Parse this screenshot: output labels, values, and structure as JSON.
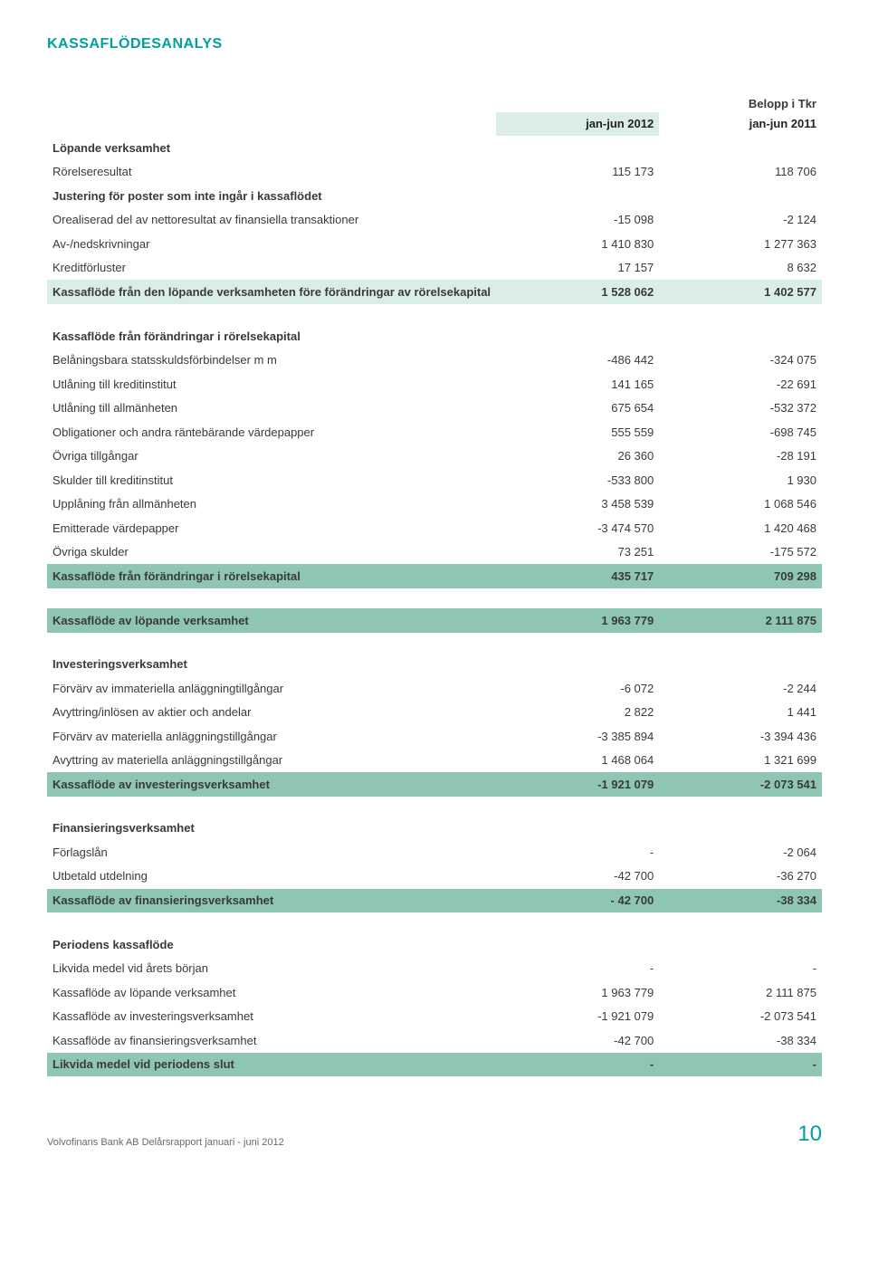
{
  "title": "KASSAFLÖDESANALYS",
  "unit_label": "Belopp i Tkr",
  "col1": "jan-jun 2012",
  "col2": "jan-jun 2011",
  "colors": {
    "accent": "#00a19a",
    "row_light": "#dbeee6",
    "row_dark": "#8ec6b3",
    "text": "#3a3a3a",
    "background": "#ffffff"
  },
  "sections": [
    {
      "type": "section_head",
      "label": "Löpande verksamhet"
    },
    {
      "type": "row",
      "label": "Rörelseresultat",
      "v1": "115 173",
      "v2": "118 706"
    },
    {
      "type": "bold_label",
      "label": "Justering för poster som inte ingår i kassaflödet"
    },
    {
      "type": "row",
      "label": "Orealiserad del av nettoresultat av finansiella transaktioner",
      "v1": "-15 098",
      "v2": "-2 124"
    },
    {
      "type": "row",
      "label": "Av-/nedskrivningar",
      "v1": "1 410 830",
      "v2": "1 277 363"
    },
    {
      "type": "row",
      "label": "Kreditförluster",
      "v1": "17 157",
      "v2": "8 632"
    },
    {
      "type": "hl_light_bold",
      "label": "Kassaflöde från den löpande verksamheten före förändringar av rörelsekapital",
      "v1": "1 528 062",
      "v2": "1 402 577"
    },
    {
      "type": "spacer"
    },
    {
      "type": "section_head",
      "label": "Kassaflöde från förändringar i rörelsekapital"
    },
    {
      "type": "row",
      "label": "Belåningsbara statsskuldsförbindelser m m",
      "v1": "-486 442",
      "v2": "-324 075"
    },
    {
      "type": "row",
      "label": "Utlåning till kreditinstitut",
      "v1": "141 165",
      "v2": "-22 691"
    },
    {
      "type": "row",
      "label": "Utlåning till allmänheten",
      "v1": "675 654",
      "v2": "-532 372"
    },
    {
      "type": "row",
      "label": "Obligationer och andra räntebärande värdepapper",
      "v1": "555 559",
      "v2": "-698 745"
    },
    {
      "type": "row",
      "label": "Övriga tillgångar",
      "v1": "26 360",
      "v2": "-28 191"
    },
    {
      "type": "row",
      "label": "Skulder till kreditinstitut",
      "v1": "-533 800",
      "v2": "1 930"
    },
    {
      "type": "row",
      "label": "Upplåning från allmänheten",
      "v1": "3 458 539",
      "v2": "1 068 546"
    },
    {
      "type": "row",
      "label": "Emitterade värdepapper",
      "v1": "-3 474 570",
      "v2": "1 420 468"
    },
    {
      "type": "row",
      "label": "Övriga skulder",
      "v1": "73 251",
      "v2": "-175 572"
    },
    {
      "type": "hl_dark",
      "label": "Kassaflöde från förändringar i rörelsekapital",
      "v1": "435 717",
      "v2": "709 298"
    },
    {
      "type": "spacer"
    },
    {
      "type": "hl_dark",
      "label": "Kassaflöde av löpande verksamhet",
      "v1": "1 963 779",
      "v2": "2 111 875"
    },
    {
      "type": "spacer"
    },
    {
      "type": "section_head",
      "label": "Investeringsverksamhet"
    },
    {
      "type": "row",
      "label": "Förvärv av immateriella anläggningtillgångar",
      "v1": "-6 072",
      "v2": "-2 244"
    },
    {
      "type": "row",
      "label": "Avyttring/inlösen av aktier och andelar",
      "v1": "2 822",
      "v2": "1 441"
    },
    {
      "type": "row",
      "label": "Förvärv av materiella anläggningstillgångar",
      "v1": "-3 385 894",
      "v2": "-3 394 436"
    },
    {
      "type": "row",
      "label": "Avyttring av materiella anläggningstillgångar",
      "v1": "1 468 064",
      "v2": "1 321 699"
    },
    {
      "type": "hl_dark",
      "label": "Kassaflöde av investeringsverksamhet",
      "v1": "-1 921 079",
      "v2": "-2 073 541"
    },
    {
      "type": "spacer"
    },
    {
      "type": "section_head",
      "label": "Finansieringsverksamhet"
    },
    {
      "type": "row",
      "label": "Förlagslån",
      "v1": "-",
      "v2": "-2 064"
    },
    {
      "type": "row",
      "label": "Utbetald utdelning",
      "v1": "-42 700",
      "v2": "-36 270"
    },
    {
      "type": "hl_dark",
      "label": "Kassaflöde av finansieringsverksamhet",
      "v1": "- 42 700",
      "v2": "-38 334"
    },
    {
      "type": "spacer"
    },
    {
      "type": "section_head",
      "label": "Periodens kassaflöde"
    },
    {
      "type": "row",
      "label": "Likvida medel vid årets början",
      "v1": "-",
      "v2": "-"
    },
    {
      "type": "row",
      "label": "Kassaflöde av löpande verksamhet",
      "v1": "1 963 779",
      "v2": "2 111 875"
    },
    {
      "type": "row",
      "label": "Kassaflöde av investeringsverksamhet",
      "v1": "-1 921 079",
      "v2": "-2 073 541"
    },
    {
      "type": "row",
      "label": "Kassaflöde av finansieringsverksamhet",
      "v1": "-42 700",
      "v2": "-38 334"
    },
    {
      "type": "hl_dark",
      "label": "Likvida medel vid periodens slut",
      "v1": "-",
      "v2": "-"
    }
  ],
  "footer_text": "Volvofinans Bank AB  Delårsrapport januari - juni 2012",
  "page_number": "10"
}
